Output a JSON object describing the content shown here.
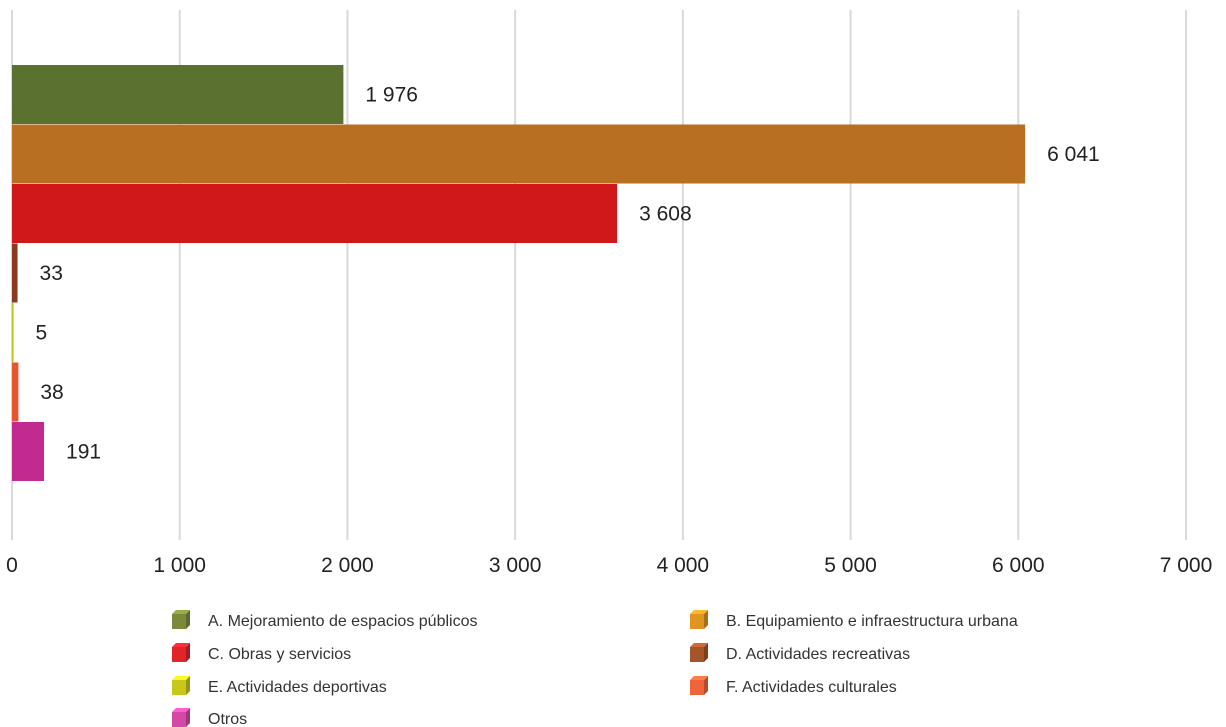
{
  "chart_data": {
    "type": "bar",
    "orientation": "horizontal",
    "categories": [
      "A. Mejoramiento de espacios públicos",
      "B. Equipamiento e infraestructura urbana",
      "C. Obras y servicios",
      "D. Actividades recreativas",
      "E. Actividades deportivas",
      "F. Actividades culturales",
      "Otros"
    ],
    "values": [
      1976,
      6041,
      3608,
      33,
      5,
      38,
      191
    ],
    "data_labels": [
      "1 976",
      "6 041",
      "3 608",
      "33",
      "5",
      "38",
      "191"
    ],
    "bar_colors": [
      "#5b7130",
      "#b86f22",
      "#d0181b",
      "#8b3a1f",
      "#b8c21a",
      "#e8542c",
      "#c12a8e"
    ],
    "legend_colors": [
      "#7a8a3a",
      "#e09422",
      "#e0252a",
      "#a5552a",
      "#c8c81a",
      "#f0643a",
      "#d24aa6"
    ],
    "xlim": [
      0,
      7000
    ],
    "xticks": [
      0,
      1000,
      2000,
      3000,
      4000,
      5000,
      6000,
      7000
    ],
    "xtick_labels": [
      "0",
      "1 000",
      "2 000",
      "3 000",
      "4 000",
      "5 000",
      "6 000",
      "7 000"
    ],
    "grid": "vertical",
    "legend": {
      "position": "bottom",
      "columns": 2,
      "items": [
        "A. Mejoramiento de espacios públicos",
        "B. Equipamiento e infraestructura urbana",
        "C. Obras y servicios",
        "D. Actividades recreativas",
        "E. Actividades deportivas",
        "F. Actividades culturales",
        "Otros"
      ]
    },
    "title": "",
    "xlabel": "",
    "ylabel": ""
  }
}
